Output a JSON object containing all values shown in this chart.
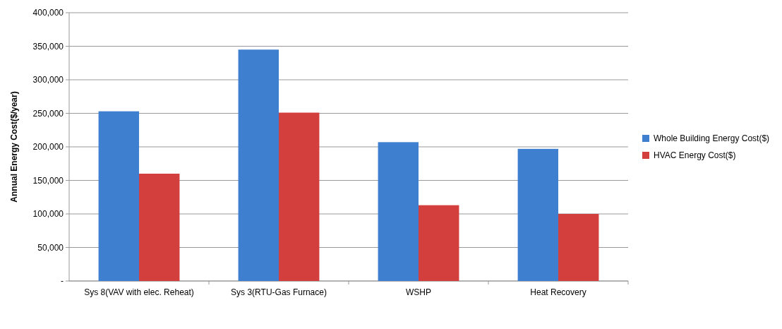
{
  "chart_data": {
    "type": "bar",
    "ylabel": "Annual Energy Cost($/year)",
    "categories": [
      "Sys 8(VAV with elec. Reheat)",
      "Sys 3(RTU-Gas  Furnace)",
      "WSHP",
      "Heat Recovery"
    ],
    "series": [
      {
        "name": "Whole Building Energy Cost($)",
        "color": "#3f7fcf",
        "values": [
          253000,
          345000,
          207000,
          197000
        ]
      },
      {
        "name": "HVAC Energy Cost($)",
        "color": "#d23f3c",
        "values": [
          160000,
          251000,
          113000,
          100000
        ]
      }
    ],
    "ylim": [
      0,
      400000
    ],
    "yticks": [
      {
        "value": 0,
        "label": "-"
      },
      {
        "value": 50000,
        "label": "50,000"
      },
      {
        "value": 100000,
        "label": "100,000"
      },
      {
        "value": 150000,
        "label": "150,000"
      },
      {
        "value": 200000,
        "label": "200,000"
      },
      {
        "value": 250000,
        "label": "250,000"
      },
      {
        "value": 300000,
        "label": "300,000"
      },
      {
        "value": 350000,
        "label": "350,000"
      },
      {
        "value": 400000,
        "label": "400,000"
      }
    ],
    "grid": "y",
    "legend": "right"
  }
}
